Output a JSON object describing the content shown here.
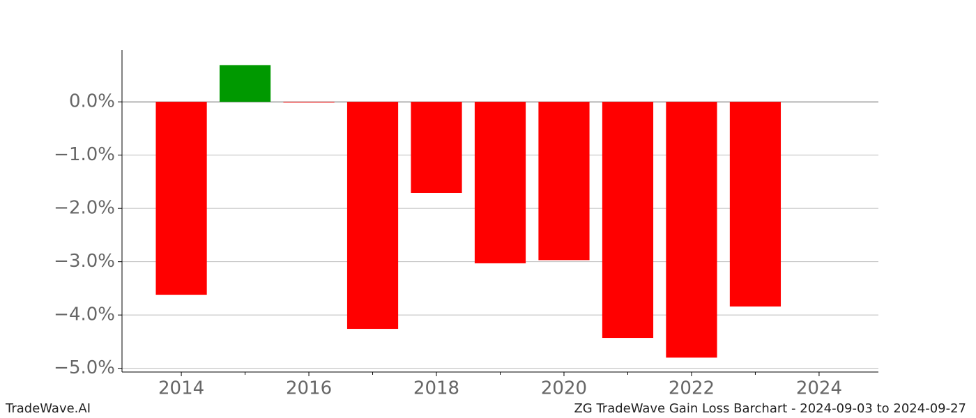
{
  "chart_data": {
    "type": "bar",
    "x": [
      2014,
      2015,
      2016,
      2017,
      2018,
      2019,
      2020,
      2021,
      2022,
      2023
    ],
    "values": [
      -3.62,
      0.69,
      -0.01,
      -4.26,
      -1.71,
      -3.03,
      -2.97,
      -4.43,
      -4.8,
      -3.84
    ],
    "positive_color": "#009900",
    "negative_color": "#ff0000",
    "xlim": [
      2013.07,
      2024.93
    ],
    "xticks": [
      2014,
      2016,
      2018,
      2020,
      2022,
      2024
    ],
    "xminorticks": [
      2015,
      2017,
      2019,
      2021,
      2023
    ],
    "ylim": [
      -5.07,
      0.97
    ],
    "yticks": [
      {
        "value": 0,
        "label": "0.0%"
      },
      {
        "value": -1,
        "label": "−1.0%"
      },
      {
        "value": -2,
        "label": "−2.0%"
      },
      {
        "value": -3,
        "label": "−3.0%"
      },
      {
        "value": -4,
        "label": "−4.0%"
      },
      {
        "value": -5,
        "label": "−5.0%"
      }
    ],
    "grid": true
  },
  "footer": {
    "left": "TradeWave.AI",
    "right": "ZG TradeWave Gain Loss Barchart - 2024-09-03 to 2024-09-27"
  }
}
